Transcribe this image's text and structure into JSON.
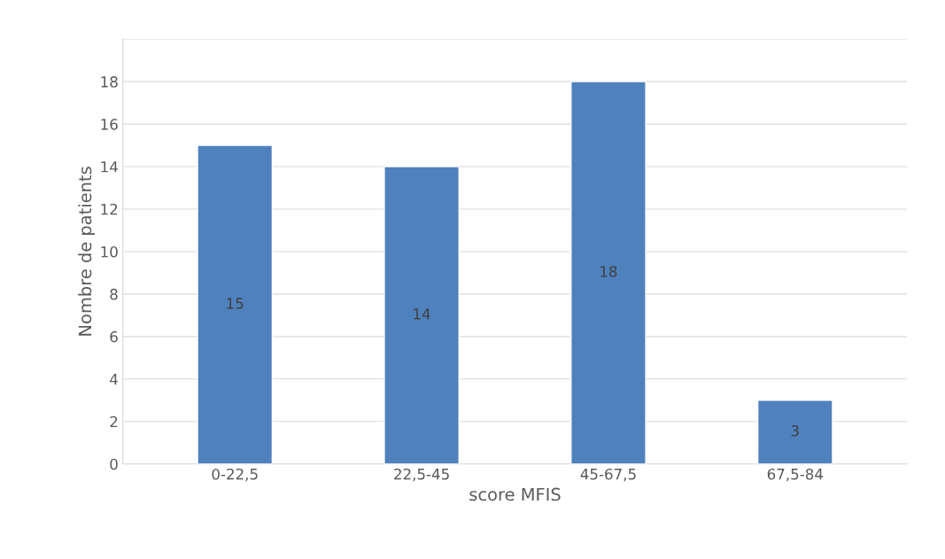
{
  "chart_data": {
    "type": "bar",
    "xlabel": "score MFIS",
    "ylabel": "Nombre de patients",
    "categories": [
      "0-22,5",
      "22,5-45",
      "45-67,5",
      "67,5-84"
    ],
    "values": [
      15,
      14,
      18,
      3
    ],
    "color": "#4f81bd",
    "ylim": [
      0,
      20
    ],
    "yticks": [
      0,
      2,
      4,
      6,
      8,
      10,
      12,
      14,
      16,
      18,
      {
        "value": 20,
        "label": null
      }
    ],
    "grid": "y",
    "data_labels": true
  }
}
